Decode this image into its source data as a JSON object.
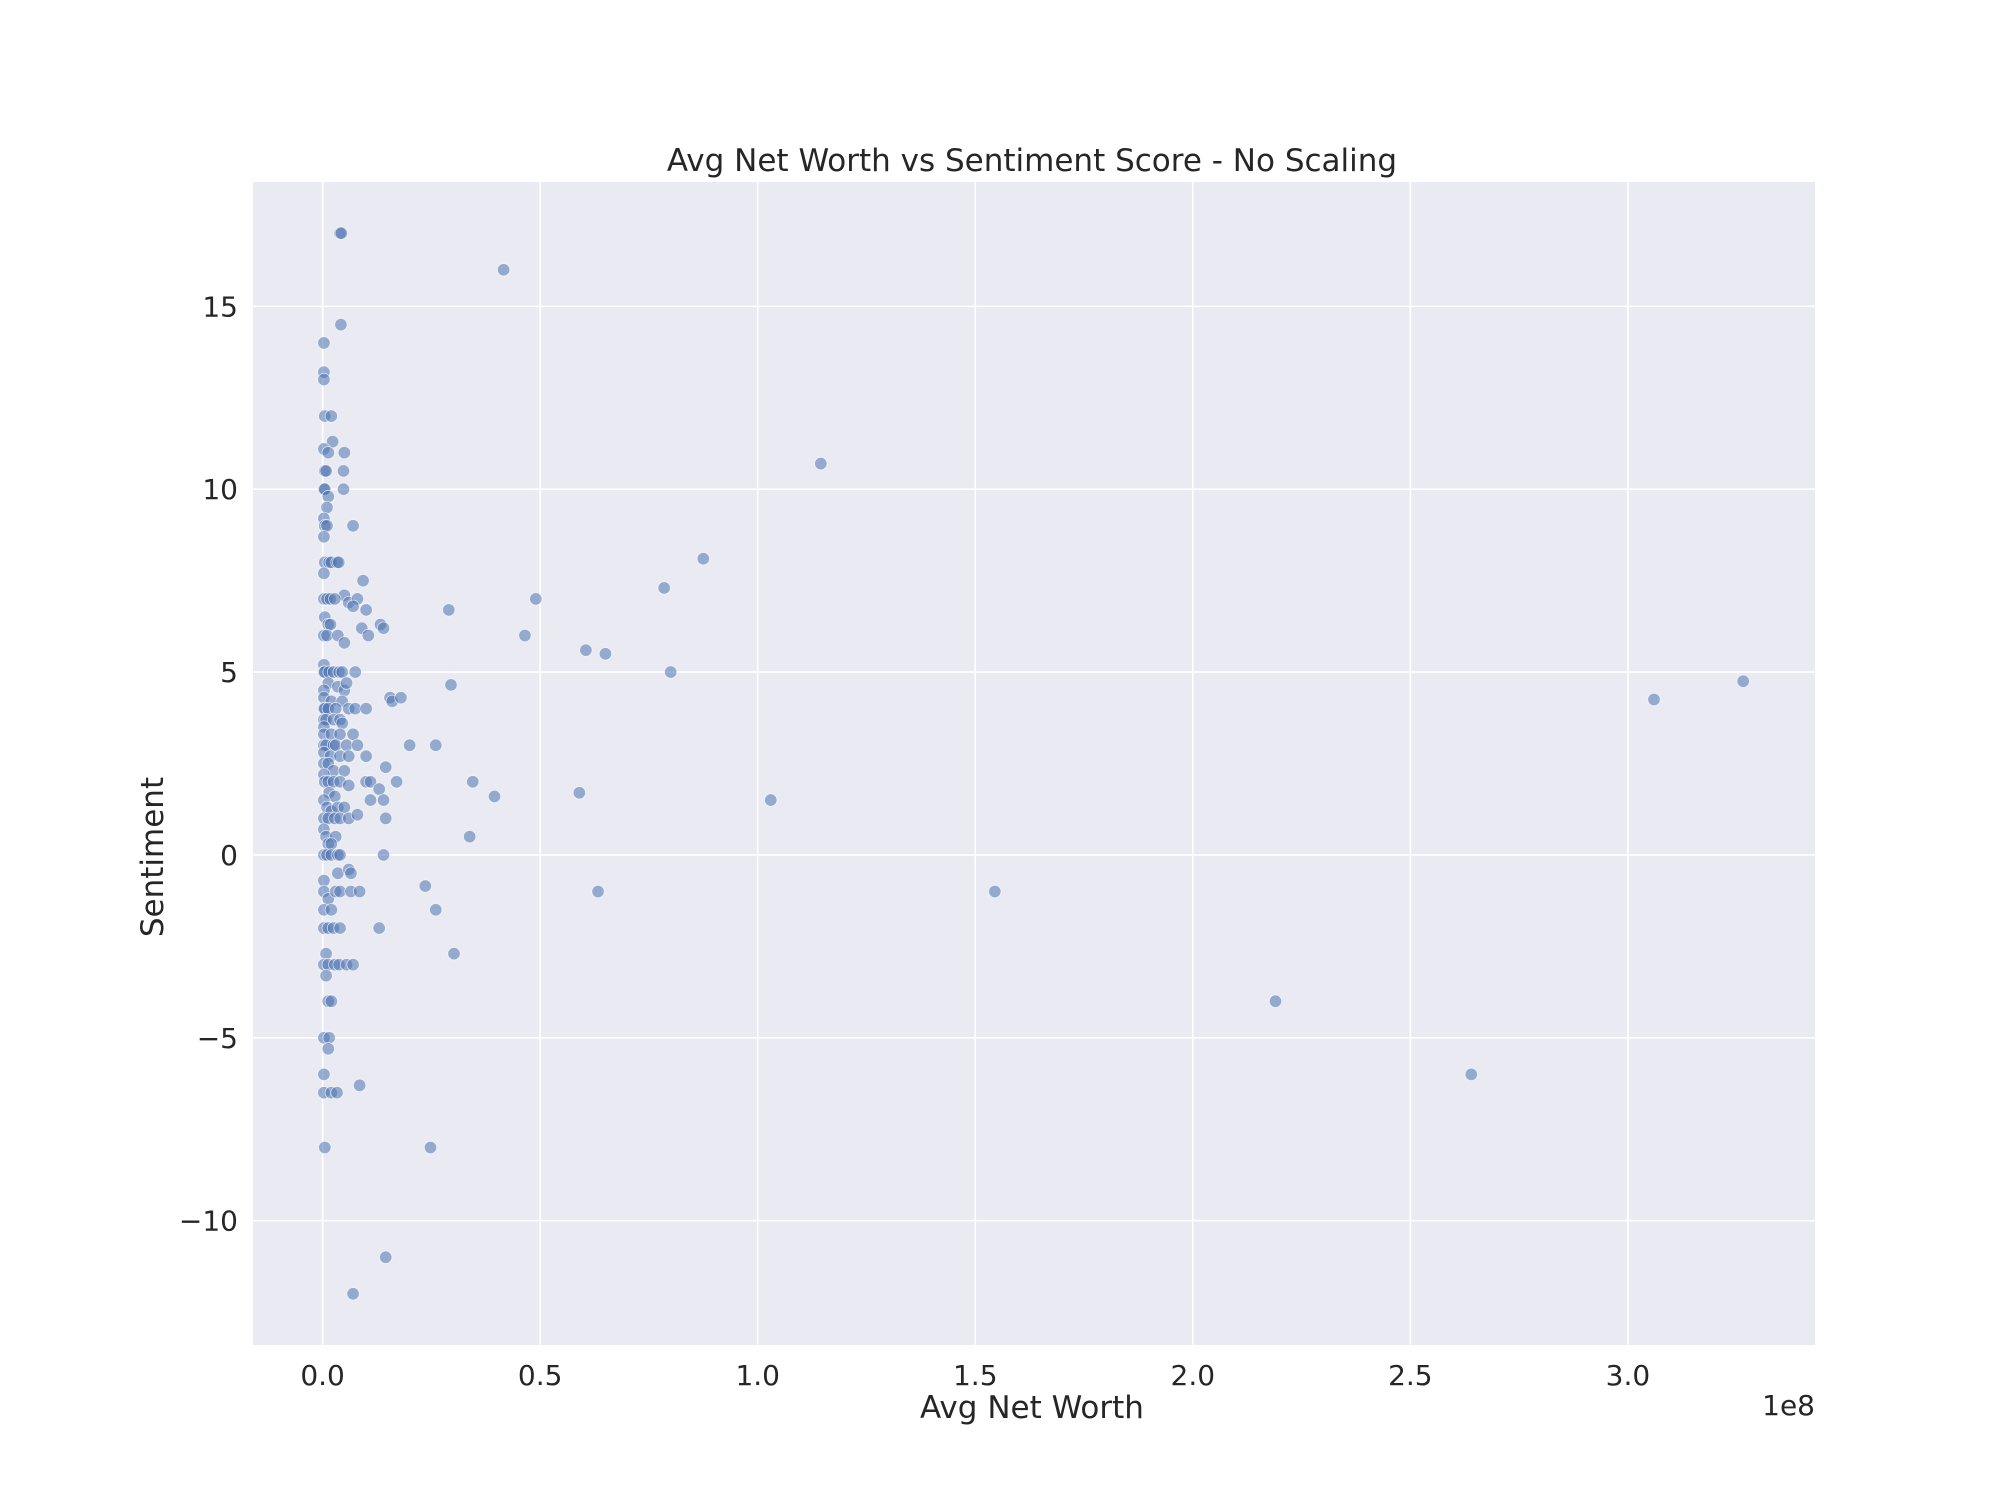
{
  "chart_data": {
    "type": "scatter",
    "title": "Avg Net Worth vs Sentiment Score - No Scaling",
    "xlabel": "Avg Net Worth",
    "ylabel": "Sentiment",
    "x_offset_label": "1e8",
    "xlim": [
      -0.16,
      3.43
    ],
    "ylim": [
      -13.4,
      18.4
    ],
    "x_ticks": [
      0.0,
      0.5,
      1.0,
      1.5,
      2.0,
      2.5,
      3.0
    ],
    "x_tick_labels": [
      "0.0",
      "0.5",
      "1.0",
      "1.5",
      "2.0",
      "2.5",
      "3.0"
    ],
    "y_ticks": [
      -10,
      -5,
      0,
      5,
      10,
      15
    ],
    "y_tick_labels": [
      "−10",
      "−5",
      "0",
      "5",
      "10",
      "15"
    ],
    "grid": true,
    "background": "#eaeaf2",
    "grid_color": "#ffffff",
    "marker_color": "#4c72b0",
    "x_unit_note": "x values in units of 1e8",
    "points": [
      [
        0.04,
        17
      ],
      [
        0.043,
        17
      ],
      [
        0.042,
        14.5
      ],
      [
        0.416,
        16
      ],
      [
        0.003,
        14
      ],
      [
        0.003,
        13.2
      ],
      [
        0.003,
        13
      ],
      [
        0.005,
        12
      ],
      [
        0.02,
        12
      ],
      [
        0.023,
        11.3
      ],
      [
        0.003,
        11.1
      ],
      [
        0.013,
        11
      ],
      [
        0.05,
        11
      ],
      [
        0.005,
        10.5
      ],
      [
        0.008,
        10.5
      ],
      [
        0.048,
        10.5
      ],
      [
        0.003,
        10
      ],
      [
        0.005,
        10
      ],
      [
        0.048,
        10
      ],
      [
        0.013,
        9.8
      ],
      [
        0.01,
        9.5
      ],
      [
        0.003,
        9.2
      ],
      [
        0.005,
        9
      ],
      [
        0.01,
        9
      ],
      [
        0.07,
        9
      ],
      [
        0.003,
        8.7
      ],
      [
        0.005,
        8
      ],
      [
        0.015,
        8
      ],
      [
        0.02,
        8
      ],
      [
        0.033,
        8
      ],
      [
        0.037,
        8
      ],
      [
        0.003,
        7.7
      ],
      [
        0.093,
        7.5
      ],
      [
        0.05,
        7.1
      ],
      [
        0.003,
        7
      ],
      [
        0.01,
        7
      ],
      [
        0.018,
        7
      ],
      [
        0.028,
        7
      ],
      [
        0.06,
        6.9
      ],
      [
        0.08,
        7
      ],
      [
        0.07,
        6.8
      ],
      [
        0.1,
        6.7
      ],
      [
        0.005,
        6.5
      ],
      [
        0.013,
        6.3
      ],
      [
        0.018,
        6.3
      ],
      [
        0.09,
        6.2
      ],
      [
        0.133,
        6.3
      ],
      [
        0.14,
        6.2
      ],
      [
        0.003,
        6
      ],
      [
        0.01,
        6
      ],
      [
        0.035,
        6
      ],
      [
        0.105,
        6
      ],
      [
        0.05,
        5.8
      ],
      [
        0.003,
        5.2
      ],
      [
        0.003,
        5
      ],
      [
        0.005,
        5
      ],
      [
        0.015,
        5
      ],
      [
        0.025,
        5
      ],
      [
        0.038,
        5
      ],
      [
        0.045,
        5
      ],
      [
        0.075,
        5
      ],
      [
        0.013,
        4.7
      ],
      [
        0.035,
        4.6
      ],
      [
        0.05,
        4.5
      ],
      [
        0.055,
        4.7
      ],
      [
        0.003,
        4.5
      ],
      [
        0.003,
        4.3
      ],
      [
        0.02,
        4.2
      ],
      [
        0.045,
        4.2
      ],
      [
        0.06,
        4.0
      ],
      [
        0.003,
        4
      ],
      [
        0.005,
        4
      ],
      [
        0.013,
        4
      ],
      [
        0.03,
        4
      ],
      [
        0.075,
        4
      ],
      [
        0.1,
        4
      ],
      [
        0.155,
        4.3
      ],
      [
        0.16,
        4.2
      ],
      [
        0.18,
        4.3
      ],
      [
        0.003,
        3.7
      ],
      [
        0.008,
        3.7
      ],
      [
        0.025,
        3.7
      ],
      [
        0.04,
        3.7
      ],
      [
        0.045,
        3.6
      ],
      [
        0.003,
        3.5
      ],
      [
        0.003,
        3.3
      ],
      [
        0.02,
        3.3
      ],
      [
        0.04,
        3.3
      ],
      [
        0.07,
        3.3
      ],
      [
        0.003,
        3
      ],
      [
        0.008,
        3
      ],
      [
        0.025,
        3
      ],
      [
        0.03,
        3
      ],
      [
        0.055,
        3
      ],
      [
        0.08,
        3
      ],
      [
        0.2,
        3
      ],
      [
        0.26,
        3
      ],
      [
        0.003,
        2.8
      ],
      [
        0.018,
        2.7
      ],
      [
        0.04,
        2.7
      ],
      [
        0.06,
        2.7
      ],
      [
        0.1,
        2.7
      ],
      [
        0.003,
        2.5
      ],
      [
        0.013,
        2.5
      ],
      [
        0.025,
        2.3
      ],
      [
        0.05,
        2.3
      ],
      [
        0.145,
        2.4
      ],
      [
        0.003,
        2.2
      ],
      [
        0.005,
        2
      ],
      [
        0.013,
        2
      ],
      [
        0.025,
        2
      ],
      [
        0.04,
        2
      ],
      [
        0.06,
        1.9
      ],
      [
        0.1,
        2
      ],
      [
        0.11,
        2
      ],
      [
        0.17,
        2
      ],
      [
        0.345,
        2
      ],
      [
        0.13,
        1.8
      ],
      [
        0.015,
        1.7
      ],
      [
        0.028,
        1.6
      ],
      [
        0.395,
        1.6
      ],
      [
        0.59,
        1.7
      ],
      [
        0.003,
        1.5
      ],
      [
        0.01,
        1.3
      ],
      [
        0.02,
        1.2
      ],
      [
        0.035,
        1.3
      ],
      [
        0.05,
        1.3
      ],
      [
        0.11,
        1.5
      ],
      [
        0.14,
        1.5
      ],
      [
        1.03,
        1.5
      ],
      [
        0.003,
        1
      ],
      [
        0.013,
        1
      ],
      [
        0.028,
        1
      ],
      [
        0.04,
        1
      ],
      [
        0.06,
        1
      ],
      [
        0.08,
        1.1
      ],
      [
        0.145,
        1
      ],
      [
        0.003,
        0.7
      ],
      [
        0.008,
        0.5
      ],
      [
        0.03,
        0.5
      ],
      [
        0.338,
        0.5
      ],
      [
        0.013,
        0.3
      ],
      [
        0.02,
        0.3
      ],
      [
        0.003,
        0
      ],
      [
        0.01,
        0
      ],
      [
        0.02,
        0
      ],
      [
        0.035,
        0
      ],
      [
        0.04,
        0
      ],
      [
        0.14,
        0
      ],
      [
        0.003,
        -0.7
      ],
      [
        0.035,
        -0.5
      ],
      [
        0.06,
        -0.4
      ],
      [
        0.065,
        -0.5
      ],
      [
        0.003,
        -1
      ],
      [
        0.013,
        -1.2
      ],
      [
        0.03,
        -1
      ],
      [
        0.04,
        -1
      ],
      [
        0.065,
        -1
      ],
      [
        0.085,
        -1
      ],
      [
        0.236,
        -0.85
      ],
      [
        0.633,
        -1
      ],
      [
        1.545,
        -1
      ],
      [
        0.003,
        -1.5
      ],
      [
        0.02,
        -1.5
      ],
      [
        0.26,
        -1.5
      ],
      [
        0.003,
        -2
      ],
      [
        0.013,
        -2
      ],
      [
        0.025,
        -2
      ],
      [
        0.04,
        -2
      ],
      [
        0.13,
        -2
      ],
      [
        0.008,
        -2.7
      ],
      [
        0.302,
        -2.7
      ],
      [
        0.003,
        -3
      ],
      [
        0.013,
        -3
      ],
      [
        0.028,
        -3
      ],
      [
        0.038,
        -3
      ],
      [
        0.055,
        -3
      ],
      [
        0.07,
        -3
      ],
      [
        0.008,
        -3.3
      ],
      [
        0.013,
        -4
      ],
      [
        0.02,
        -4
      ],
      [
        2.19,
        -4
      ],
      [
        0.003,
        -5
      ],
      [
        0.015,
        -5
      ],
      [
        0.013,
        -5.3
      ],
      [
        0.003,
        -6
      ],
      [
        2.64,
        -6
      ],
      [
        0.003,
        -6.5
      ],
      [
        0.02,
        -6.5
      ],
      [
        0.033,
        -6.5
      ],
      [
        0.085,
        -6.3
      ],
      [
        0.005,
        -8
      ],
      [
        0.248,
        -8
      ],
      [
        0.145,
        -11
      ],
      [
        0.07,
        -12
      ],
      [
        1.145,
        10.7
      ],
      [
        0.875,
        8.1
      ],
      [
        0.785,
        7.3
      ],
      [
        0.49,
        7
      ],
      [
        0.29,
        6.7
      ],
      [
        0.465,
        6
      ],
      [
        0.605,
        5.6
      ],
      [
        0.65,
        5.5
      ],
      [
        0.8,
        5
      ],
      [
        0.295,
        4.65
      ],
      [
        3.06,
        4.25
      ],
      [
        3.265,
        4.75
      ]
    ]
  }
}
